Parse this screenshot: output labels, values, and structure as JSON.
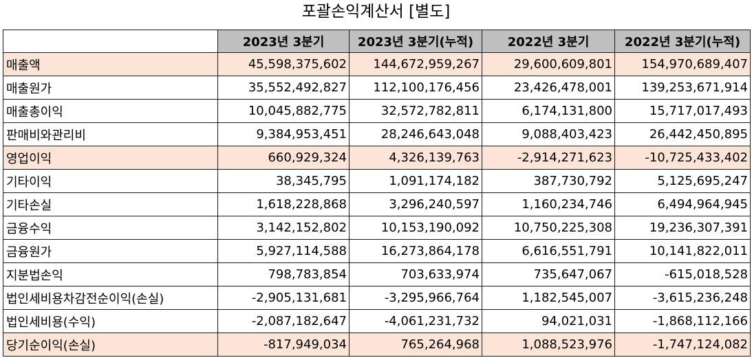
{
  "title": "포괄손익계산서 [별도]",
  "columns": [
    "",
    "2023년 3분기",
    "2023년 3분기(누적)",
    "2022년 3분기",
    "2022년 3분기(누적)"
  ],
  "rows": [
    {
      "label": "매출액",
      "values": [
        "45,598,375,602",
        "144,672,959,267",
        "29,600,609,801",
        "154,970,689,407"
      ],
      "highlight": true
    },
    {
      "label": "매출원가",
      "values": [
        "35,552,492,827",
        "112,100,176,456",
        "23,426,478,001",
        "139,253,671,914"
      ],
      "highlight": false
    },
    {
      "label": "매출총이익",
      "values": [
        "10,045,882,775",
        "32,572,782,811",
        "6,174,131,800",
        "15,717,017,493"
      ],
      "highlight": false
    },
    {
      "label": "판매비와관리비",
      "values": [
        "9,384,953,451",
        "28,246,643,048",
        "9,088,403,423",
        "26,442,450,895"
      ],
      "highlight": false
    },
    {
      "label": "영업이익",
      "values": [
        "660,929,324",
        "4,326,139,763",
        "-2,914,271,623",
        "-10,725,433,402"
      ],
      "highlight": true
    },
    {
      "label": "기타이익",
      "values": [
        "38,345,795",
        "1,091,174,182",
        "387,730,792",
        "5,125,695,247"
      ],
      "highlight": false
    },
    {
      "label": "기타손실",
      "values": [
        "1,618,228,868",
        "3,296,240,597",
        "1,160,234,746",
        "6,494,964,945"
      ],
      "highlight": false
    },
    {
      "label": "금융수익",
      "values": [
        "3,142,152,802",
        "10,153,190,092",
        "10,750,225,308",
        "19,236,307,391"
      ],
      "highlight": false
    },
    {
      "label": "금융원가",
      "values": [
        "5,927,114,588",
        "16,273,864,178",
        "6,616,551,791",
        "10,141,822,011"
      ],
      "highlight": false
    },
    {
      "label": "지분법손익",
      "values": [
        "798,783,854",
        "703,633,974",
        "735,647,067",
        "-615,018,528"
      ],
      "highlight": false
    },
    {
      "label": "법인세비용차감전순이익(손실)",
      "values": [
        "-2,905,131,681",
        "-3,295,966,764",
        "1,182,545,007",
        "-3,615,236,248"
      ],
      "highlight": false
    },
    {
      "label": "법인세비용(수익)",
      "values": [
        "-2,087,182,647",
        "-4,061,231,732",
        "94,021,031",
        "-1,868,112,166"
      ],
      "highlight": false
    },
    {
      "label": "당기순이익(손실)",
      "values": [
        "-817,949,034",
        "765,264,968",
        "1,088,523,976",
        "-1,747,124,082"
      ],
      "highlight": true
    }
  ],
  "colors": {
    "header_bg": "#c0c0c0",
    "highlight_bg": "#fce4d6",
    "border": "#1a1a1a"
  }
}
